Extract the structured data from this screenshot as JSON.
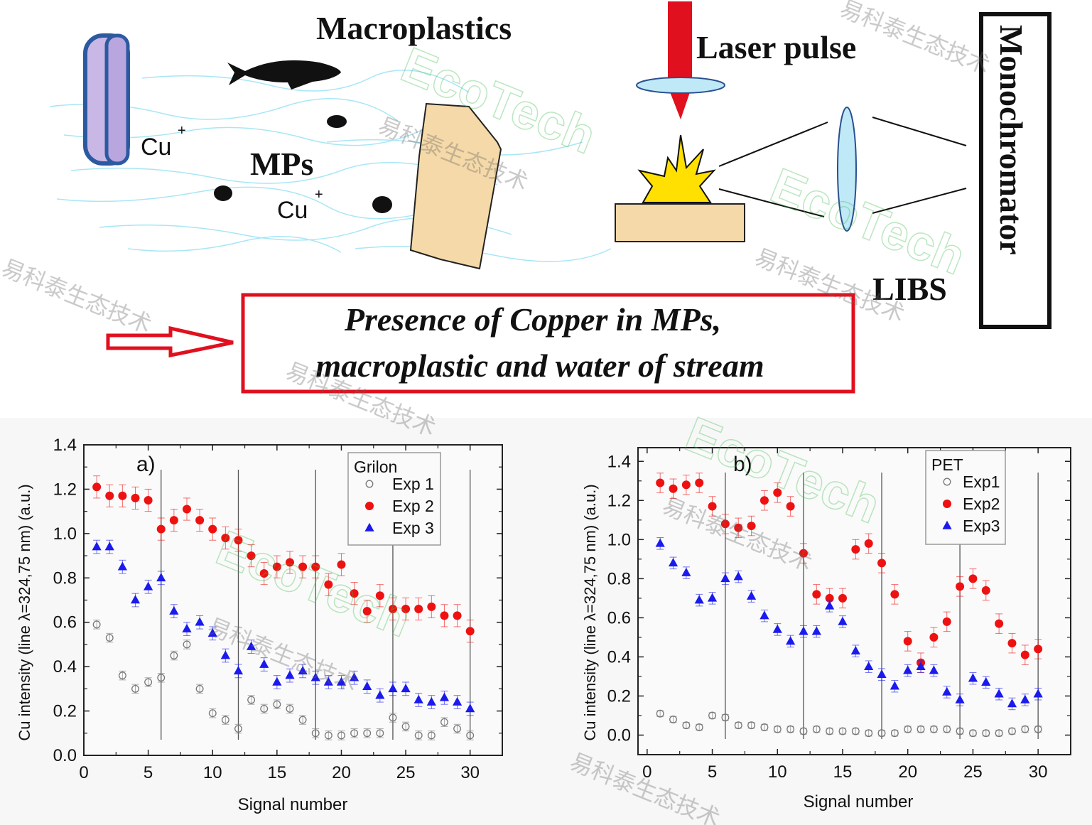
{
  "diagram": {
    "macroplastics": "Macroplastics",
    "laser_pulse": "Laser pulse",
    "monochromator": "Monochromator",
    "mps": "MPs",
    "cu_ion_1": "Cu",
    "cu_ion_2": "Cu",
    "ion_charge": "+",
    "libs": "LIBS",
    "conclusion_line1": "Presence of Copper in MPs,",
    "conclusion_line2": "macroplastic and water of stream",
    "colors": {
      "laser": "#e0101e",
      "box_border": "#e0101e",
      "lens": "#bfe9f7",
      "plastic": "#f5d9a8",
      "water": "#a8e6f5",
      "flash": "#ffe000"
    }
  },
  "watermark": {
    "logo": "EcoTech",
    "chinese": "易科泰生态技术"
  },
  "chart_data": [
    {
      "type": "scatter",
      "panel_label": "a)",
      "legend_title": "Grilon",
      "legend_position": "top-right",
      "xlabel": "Signal number",
      "ylabel": "Cu intensity (line λ=324,75 nm) (a.u.)",
      "xlim": [
        0,
        32.5
      ],
      "ylim": [
        0,
        1.4
      ],
      "xticks": [
        "0",
        "5",
        "10",
        "15",
        "20",
        "25",
        "30"
      ],
      "yticks": [
        "0.0",
        "0.2",
        "0.4",
        "0.6",
        "0.8",
        "1.0",
        "1.2",
        "1.4"
      ],
      "vertical_lines_at": [
        6,
        12,
        18,
        24,
        30
      ],
      "x": [
        1,
        2,
        3,
        4,
        5,
        6,
        7,
        8,
        9,
        10,
        11,
        12,
        13,
        14,
        15,
        16,
        17,
        18,
        19,
        20,
        21,
        22,
        23,
        24,
        25,
        26,
        27,
        28,
        29,
        30
      ],
      "series": [
        {
          "name": "Exp 1",
          "marker": "open-circle",
          "color": "#777777",
          "error": 0.02,
          "values": [
            0.59,
            0.53,
            0.36,
            0.3,
            0.33,
            0.35,
            0.45,
            0.5,
            0.3,
            0.19,
            0.16,
            0.12,
            0.25,
            0.21,
            0.23,
            0.21,
            0.16,
            0.1,
            0.09,
            0.09,
            0.1,
            0.1,
            0.1,
            0.17,
            0.13,
            0.09,
            0.09,
            0.15,
            0.12,
            0.09
          ]
        },
        {
          "name": "Exp 2",
          "marker": "filled-circle",
          "color": "#ee1111",
          "error": 0.05,
          "values": [
            1.21,
            1.17,
            1.17,
            1.16,
            1.15,
            1.02,
            1.06,
            1.11,
            1.06,
            1.02,
            0.98,
            0.97,
            0.9,
            0.82,
            0.85,
            0.87,
            0.85,
            0.85,
            0.77,
            0.86,
            0.73,
            0.65,
            0.72,
            0.66,
            0.66,
            0.66,
            0.67,
            0.63,
            0.63,
            0.56
          ]
        },
        {
          "name": "Exp 3",
          "marker": "filled-triangle",
          "color": "#1a1aee",
          "error": 0.03,
          "values": [
            0.94,
            0.94,
            0.85,
            0.7,
            0.76,
            0.8,
            0.65,
            0.57,
            0.6,
            0.55,
            0.45,
            0.38,
            0.49,
            0.41,
            0.33,
            0.36,
            0.38,
            0.35,
            0.33,
            0.33,
            0.35,
            0.31,
            0.27,
            0.3,
            0.3,
            0.25,
            0.24,
            0.26,
            0.24,
            0.21
          ]
        }
      ]
    },
    {
      "type": "scatter",
      "panel_label": "b)",
      "legend_title": "PET",
      "legend_position": "top-right",
      "xlabel": "Signal number",
      "ylabel": "Cu intensity (line λ=324,75 nm) (a.u.)",
      "xlim": [
        -0.7,
        32.5
      ],
      "ylim": [
        -0.1,
        1.47
      ],
      "xticks": [
        "0",
        "5",
        "10",
        "15",
        "20",
        "25",
        "30"
      ],
      "yticks": [
        "0.0",
        "0.2",
        "0.4",
        "0.6",
        "0.8",
        "1.0",
        "1.2",
        "1.4"
      ],
      "vertical_lines_at": [
        6,
        12,
        18,
        24,
        30
      ],
      "x": [
        1,
        2,
        3,
        4,
        5,
        6,
        7,
        8,
        9,
        10,
        11,
        12,
        13,
        14,
        15,
        16,
        17,
        18,
        19,
        20,
        21,
        22,
        23,
        24,
        25,
        26,
        27,
        28,
        29,
        30
      ],
      "series": [
        {
          "name": "Exp1",
          "marker": "open-circle",
          "color": "#777777",
          "error": 0.015,
          "values": [
            0.11,
            0.08,
            0.05,
            0.04,
            0.1,
            0.09,
            0.05,
            0.05,
            0.04,
            0.03,
            0.03,
            0.02,
            0.03,
            0.02,
            0.02,
            0.02,
            0.01,
            0.01,
            0.01,
            0.03,
            0.03,
            0.03,
            0.03,
            0.02,
            0.01,
            0.01,
            0.01,
            0.02,
            0.03,
            0.03
          ]
        },
        {
          "name": "Exp2",
          "marker": "filled-circle",
          "color": "#ee1111",
          "error": 0.05,
          "values": [
            1.29,
            1.26,
            1.28,
            1.29,
            1.17,
            1.08,
            1.06,
            1.07,
            1.2,
            1.24,
            1.17,
            0.93,
            0.72,
            0.7,
            0.7,
            0.95,
            0.98,
            0.88,
            0.72,
            0.48,
            0.37,
            0.5,
            0.58,
            0.76,
            0.8,
            0.74,
            0.57,
            0.47,
            0.41,
            0.44
          ]
        },
        {
          "name": "Exp3",
          "marker": "filled-triangle",
          "color": "#1a1aee",
          "error": 0.03,
          "values": [
            0.98,
            0.88,
            0.83,
            0.69,
            0.7,
            0.8,
            0.81,
            0.71,
            0.61,
            0.54,
            0.48,
            0.53,
            0.53,
            0.66,
            0.58,
            0.43,
            0.35,
            0.31,
            0.25,
            0.33,
            0.35,
            0.33,
            0.22,
            0.18,
            0.29,
            0.27,
            0.21,
            0.16,
            0.18,
            0.21
          ]
        }
      ]
    }
  ]
}
